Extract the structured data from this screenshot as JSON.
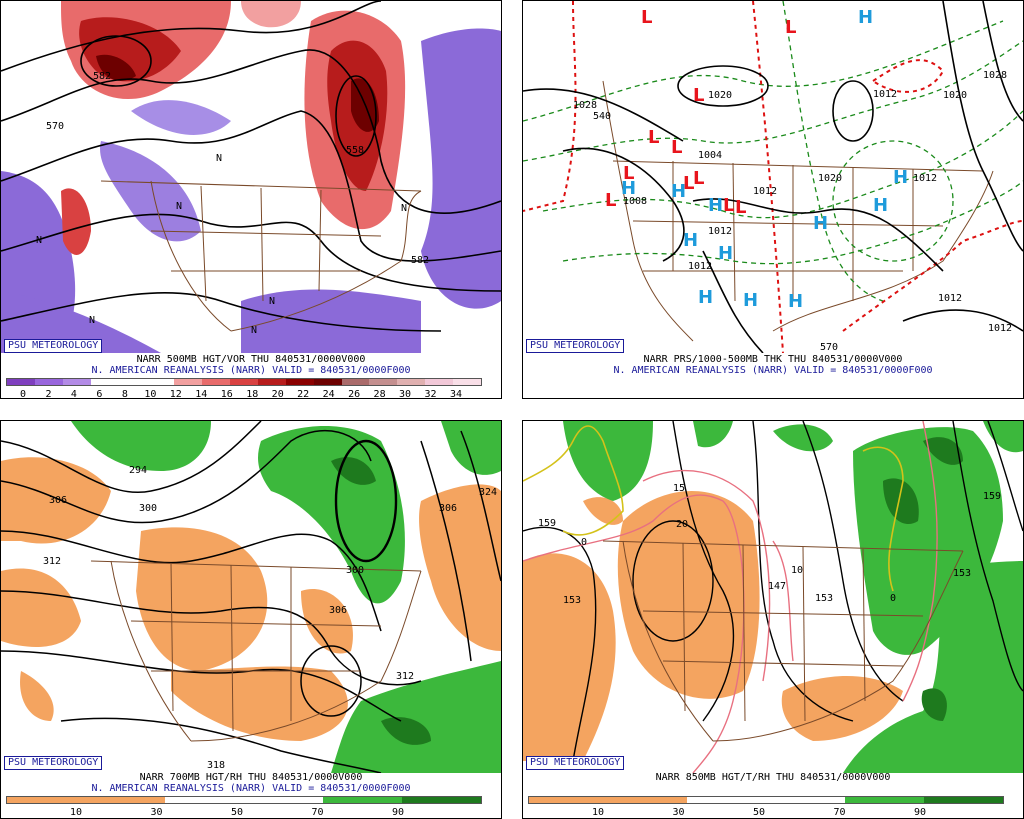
{
  "panels": {
    "p1": {
      "psu_label": "PSU METEOROLOGY",
      "product": "NARR 500MB HGT/VOR THU 840531/0000V000",
      "dataset": "N. AMERICAN REANALYSIS (NARR) VALID = 840531/0000F000",
      "colorbar": {
        "colors": [
          "#7f3fbf",
          "#9966dd",
          "#b38be6",
          "#ffffff",
          "#ffffff",
          "#ffffff",
          "#f2a0a0",
          "#e86b6b",
          "#d94141",
          "#b71c1c",
          "#8b0000",
          "#6d0000",
          "#aa6b6b",
          "#c48f8f",
          "#e0b0b0",
          "#f2c8d8",
          "#f9dfe8"
        ],
        "labels": [
          "0",
          "2",
          "4",
          "6",
          "8",
          "10",
          "12",
          "14",
          "16",
          "18",
          "20",
          "22",
          "24",
          "26",
          "28",
          "30",
          "32",
          "34"
        ]
      },
      "height_labels": [
        "582",
        "570",
        "558",
        "582"
      ],
      "vort_labels": [
        "N",
        "N",
        "N",
        "N",
        "N",
        "N",
        "N"
      ]
    },
    "p2": {
      "psu_label": "PSU METEOROLOGY",
      "product": "NARR PRS/1000-500MB THK THU 840531/0000V000",
      "dataset": "N. AMERICAN REANALYSIS (NARR) VALID = 840531/0000F000",
      "isobar_labels": [
        "1028",
        "1008",
        "1004",
        "1012",
        "1012",
        "1020",
        "1012",
        "1012",
        "1012",
        "1020",
        "1012",
        "1028",
        "1020",
        "1012"
      ],
      "thickness_labels": [
        "540",
        "570"
      ],
      "low_symbol": "L",
      "high_symbol": "H",
      "colors": {
        "low": "#e8141c",
        "high": "#1e9bdb",
        "cold_thk": "#1a8a1a",
        "warm_thk": "#dd1111",
        "isobar": "#000000"
      }
    },
    "p3": {
      "psu_label": "PSU METEOROLOGY",
      "product": "NARR 700MB HGT/RH THU 840531/0000V000",
      "dataset": "N. AMERICAN REANALYSIS (NARR) VALID = 840531/0000F000",
      "colorbar": {
        "colors": [
          "#f4a460",
          "#f4a460",
          "#ffffff",
          "#ffffff",
          "#3cb83c",
          "#1e7a1e"
        ],
        "labels": [
          "10",
          "30",
          "50",
          "70",
          "90"
        ]
      },
      "height_labels": [
        "294",
        "300",
        "306",
        "312",
        "306",
        "300",
        "306",
        "318",
        "312",
        "324"
      ]
    },
    "p4": {
      "psu_label": "PSU METEOROLOGY",
      "product": "NARR 850MB HGT/T/RH THU 840531/0000V000",
      "dataset": "",
      "colorbar": {
        "colors": [
          "#f4a460",
          "#f4a460",
          "#ffffff",
          "#ffffff",
          "#3cb83c",
          "#1e7a1e"
        ],
        "labels": [
          "10",
          "30",
          "50",
          "70",
          "90"
        ]
      },
      "height_labels": [
        "159",
        "153",
        "153",
        "147",
        "153",
        "159"
      ],
      "temp_labels": [
        "20",
        "10",
        "0",
        "0",
        "15"
      ]
    }
  }
}
